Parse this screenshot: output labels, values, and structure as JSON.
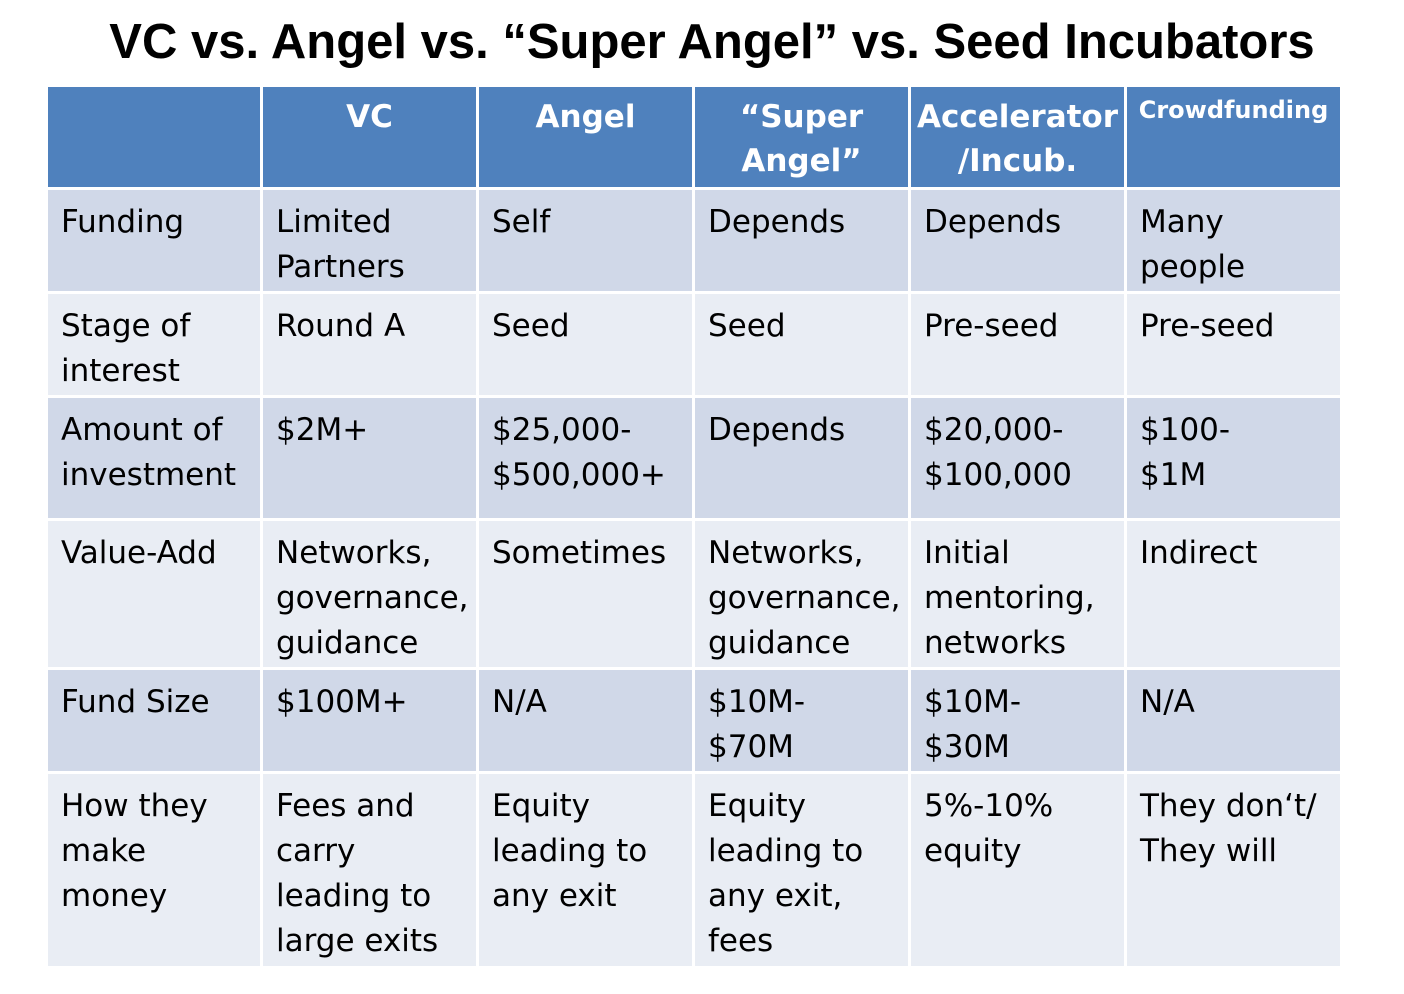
{
  "title": "VC vs. Angel vs. “Super Angel” vs. Seed Incubators",
  "table": {
    "headers": [
      "",
      "VC",
      "Angel",
      "“Super\nAngel”",
      "Accelerator\n/Incub.",
      "Crowdfunding"
    ],
    "rows": [
      {
        "label": "Funding",
        "cells": [
          "Limited\nPartners",
          "Self",
          "Depends",
          "Depends",
          "Many\npeople"
        ]
      },
      {
        "label": "Stage of\ninterest",
        "cells": [
          "Round A",
          "Seed",
          "Seed",
          "Pre-seed",
          "Pre-seed"
        ]
      },
      {
        "label": "Amount of\ninvestment",
        "cells": [
          "$2M+",
          "$25,000-\n$500,000+",
          "Depends",
          "$20,000-\n$100,000",
          "$100-\n$1M"
        ]
      },
      {
        "label": "Value-Add",
        "cells": [
          "Networks,\ngovernance,\nguidance",
          "Sometimes",
          "Networks,\ngovernance,\nguidance",
          "Initial\nmentoring,\nnetworks",
          "Indirect"
        ]
      },
      {
        "label": "Fund Size",
        "cells": [
          "$100M+",
          "N/A",
          "$10M-\n$70M",
          "$10M-\n$30M",
          "N/A"
        ]
      },
      {
        "label": "How they\nmake\nmoney",
        "cells": [
          "Fees and\ncarry\nleading to\nlarge exits",
          "Equity\nleading to\nany exit",
          "Equity\nleading to\nany exit,\nfees",
          "5%-10%\nequity",
          "They don‘t/\nThey will"
        ]
      }
    ]
  }
}
